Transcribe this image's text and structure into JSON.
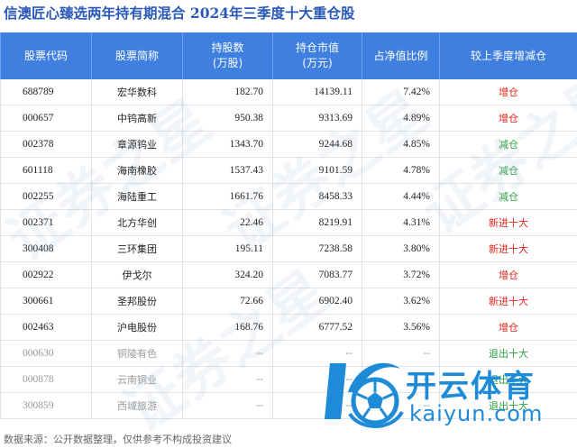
{
  "title": {
    "fund_name": "信澳匠心臻选两年持有期混合",
    "period": "2024年三季度十大重仓股"
  },
  "columns": {
    "code": "股票代码",
    "name": "股票简称",
    "shares_line1": "持股数",
    "shares_line2": "(万股)",
    "value_line1": "持仓市值",
    "value_line2": "(万元)",
    "ratio": "占净值比例",
    "change": "较上季度增减仓"
  },
  "colors": {
    "increase": "#e0231c",
    "decrease": "#2ea043",
    "header_bg": "#3f7fe0",
    "title": "#2a58b8"
  },
  "rows": [
    {
      "code": "688789",
      "name": "宏华数科",
      "shares": "182.70",
      "value": "14139.11",
      "ratio": "7.42%",
      "change": "增仓",
      "type": "increase"
    },
    {
      "code": "000657",
      "name": "中钨高新",
      "shares": "950.38",
      "value": "9313.69",
      "ratio": "4.89%",
      "change": "增仓",
      "type": "increase"
    },
    {
      "code": "002378",
      "name": "章源钨业",
      "shares": "1343.70",
      "value": "9244.68",
      "ratio": "4.85%",
      "change": "减仓",
      "type": "decrease"
    },
    {
      "code": "601118",
      "name": "海南橡胶",
      "shares": "1537.43",
      "value": "9101.59",
      "ratio": "4.78%",
      "change": "减仓",
      "type": "decrease"
    },
    {
      "code": "002255",
      "name": "海陆重工",
      "shares": "1661.76",
      "value": "8458.33",
      "ratio": "4.44%",
      "change": "减仓",
      "type": "decrease"
    },
    {
      "code": "002371",
      "name": "北方华创",
      "shares": "22.46",
      "value": "8219.91",
      "ratio": "4.31%",
      "change": "新进十大",
      "type": "increase"
    },
    {
      "code": "300408",
      "name": "三环集团",
      "shares": "195.11",
      "value": "7238.58",
      "ratio": "3.80%",
      "change": "新进十大",
      "type": "increase"
    },
    {
      "code": "002922",
      "name": "伊戈尔",
      "shares": "324.20",
      "value": "7083.77",
      "ratio": "3.72%",
      "change": "增仓",
      "type": "increase"
    },
    {
      "code": "300661",
      "name": "圣邦股份",
      "shares": "72.66",
      "value": "6902.40",
      "ratio": "3.62%",
      "change": "新进十大",
      "type": "increase"
    },
    {
      "code": "002463",
      "name": "沪电股份",
      "shares": "168.76",
      "value": "6777.52",
      "ratio": "3.56%",
      "change": "增仓",
      "type": "increase"
    },
    {
      "code": "000630",
      "name": "铜陵有色",
      "shares": "--",
      "value": "--",
      "ratio": "--",
      "change": "退出十大",
      "type": "decrease",
      "out": true
    },
    {
      "code": "000878",
      "name": "云南铜业",
      "shares": "--",
      "value": "--",
      "ratio": "--",
      "change": "退出十大",
      "type": "decrease",
      "out": true
    },
    {
      "code": "300859",
      "name": "西域旅游",
      "shares": "--",
      "value": "--",
      "ratio": "--",
      "change": "退出十大",
      "type": "decrease",
      "out": true
    }
  ],
  "source": "数据来源：公开数据整理，仅供参考不构成投资建议",
  "watermark": "证券之星",
  "logo": {
    "name": "开云体育",
    "domain": "kaiyun.com"
  }
}
